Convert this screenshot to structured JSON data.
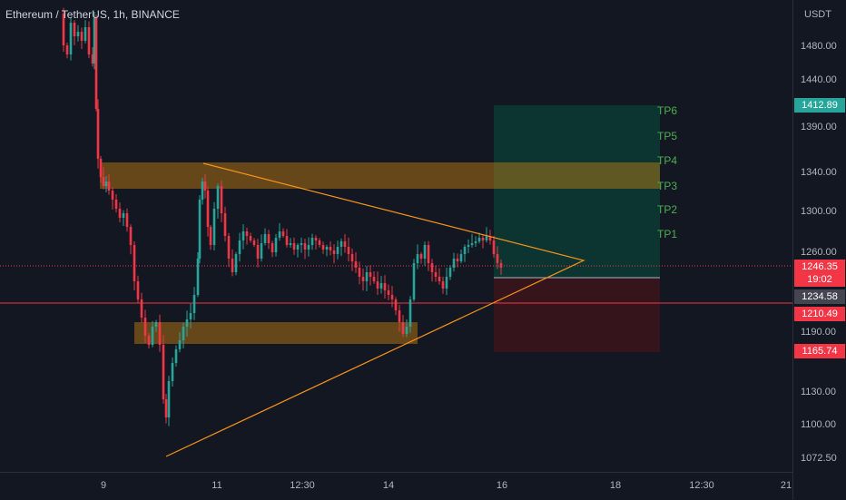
{
  "legend": {
    "symbol": "Ethereum / TetherUS, 1h, BINANCE"
  },
  "price_axis": {
    "unit": "USDT",
    "ticks": [
      "1480.00",
      "1440.00",
      "1390.00",
      "1340.00",
      "1300.00",
      "1260.00",
      "1190.00",
      "1130.00",
      "1100.00",
      "1072.50"
    ],
    "tick_values": [
      1480,
      1440,
      1390,
      1340,
      1300,
      1260,
      1190,
      1130,
      1100,
      1072.5
    ]
  },
  "time_axis": {
    "ticks": [
      "9",
      "11",
      "12:30",
      "14",
      "16",
      "18",
      "12:30",
      "21"
    ]
  },
  "price_labels": {
    "target": {
      "text": "1412.89",
      "color": "#26a69a",
      "value": 1412.89
    },
    "current": {
      "text": "1246.35",
      "countdown": "19:02",
      "color": "#f23645",
      "value": 1246.35
    },
    "crosshair": {
      "text": "1234.58",
      "color": "#434651",
      "value": 1234.58
    },
    "level": {
      "text": "1210.49",
      "color": "#f23645",
      "value": 1210.49
    },
    "stop": {
      "text": "1165.74",
      "color": "#f23645",
      "value": 1165.74
    }
  },
  "targets": [
    "TP6",
    "TP5",
    "TP4",
    "TP3",
    "TP2",
    "TP1"
  ],
  "colors": {
    "background": "#131722",
    "up": "#26a69a",
    "down": "#f23645",
    "zone": "#d68a10",
    "triangle": "#f7931a",
    "profit_zone": "#0c3a33",
    "loss_zone": "#3a151b"
  }
}
